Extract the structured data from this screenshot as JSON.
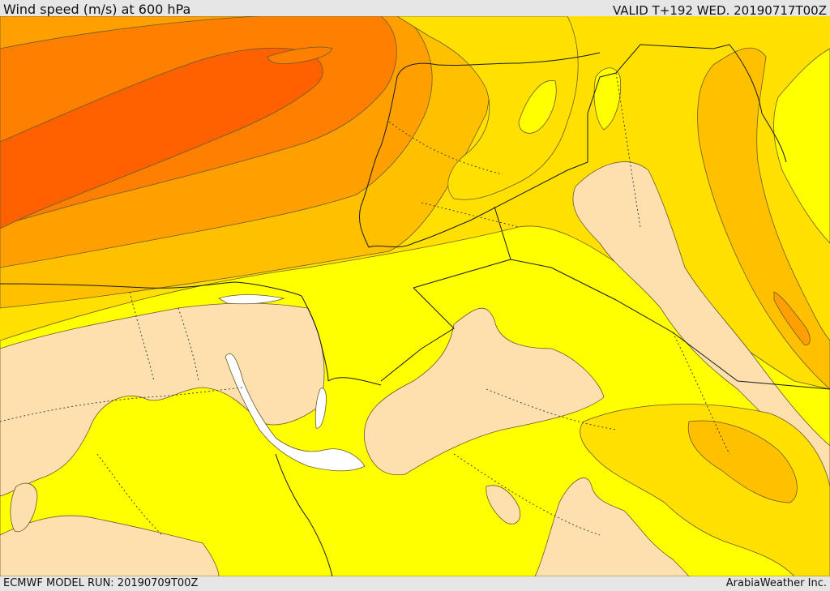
{
  "header": {
    "title": "Wind speed (m/s) at 600 hPa",
    "valid": "VALID T+192 WED. 20190717T00Z"
  },
  "footer": {
    "model_run": "ECMWF MODEL RUN: 20190709T00Z",
    "credit": "ArabiaWeather Inc."
  },
  "legend_colors": {
    "level_1": "#fde0ae",
    "level_2": "#ffff00",
    "level_3": "#ffe000",
    "level_4": "#ffc000",
    "level_5": "#ffa000",
    "level_6": "#ff8000",
    "level_7": "#ff6000",
    "missing": "#ffffff"
  }
}
